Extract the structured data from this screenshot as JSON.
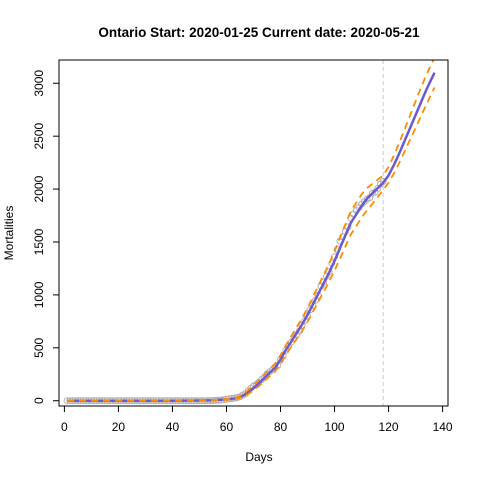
{
  "chart_data": {
    "type": "line",
    "title": "Ontario Start:  2020-01-25   Current date:  2020-05-21",
    "xlabel": "Days",
    "ylabel": "Mortalities",
    "xlim": [
      -2,
      142
    ],
    "ylim": [
      -50,
      3220
    ],
    "x_ticks": [
      0,
      20,
      40,
      60,
      80,
      100,
      120,
      140
    ],
    "y_ticks": [
      0,
      500,
      1000,
      1500,
      2000,
      2500,
      3000
    ],
    "grid": false,
    "legend": "none",
    "current_day_marker": 118,
    "colors": {
      "fit": "#6a5acd",
      "band": "#ff8c00",
      "observed": "#b0b0b0",
      "marker_line": "#d3d3d3",
      "axis": "#000000"
    },
    "series": [
      {
        "role": "observed",
        "style": "points",
        "x": [
          1,
          2,
          3,
          4,
          5,
          6,
          7,
          8,
          9,
          10,
          11,
          12,
          13,
          14,
          15,
          16,
          17,
          18,
          19,
          20,
          21,
          22,
          23,
          24,
          25,
          26,
          27,
          28,
          29,
          30,
          31,
          32,
          33,
          34,
          35,
          36,
          37,
          38,
          39,
          40,
          41,
          42,
          43,
          44,
          45,
          46,
          47,
          48,
          49,
          50,
          51,
          52,
          53,
          54,
          55,
          56,
          57,
          58,
          59,
          60,
          61,
          62,
          63,
          64,
          65,
          66,
          67,
          68,
          69,
          70,
          71,
          72,
          73,
          74,
          75,
          76,
          77,
          78,
          79,
          80,
          81,
          82,
          83,
          84,
          85,
          86,
          87,
          88,
          89,
          90,
          91,
          92,
          93,
          94,
          95,
          96,
          97,
          98,
          99,
          100,
          101,
          102,
          103,
          104,
          105,
          106,
          107,
          108,
          109,
          110,
          111,
          112,
          113,
          114,
          115,
          116,
          117,
          118
        ],
        "y": [
          0,
          0,
          0,
          0,
          0,
          0,
          0,
          0,
          0,
          0,
          0,
          0,
          0,
          0,
          0,
          0,
          0,
          0,
          0,
          0,
          0,
          0,
          0,
          0,
          0,
          0,
          0,
          0,
          0,
          0,
          0,
          0,
          0,
          0,
          0,
          0,
          0,
          0,
          0,
          0,
          0,
          0,
          0,
          0,
          0,
          0,
          0,
          0,
          0,
          0,
          0,
          0,
          1,
          1,
          2,
          3,
          5,
          7,
          9,
          13,
          18,
          21,
          25,
          30,
          37,
          53,
          67,
          94,
          119,
          139,
          153,
          174,
          200,
          222,
          253,
          274,
          291,
          318,
          334,
          385,
          423,
          475,
          514,
          553,
          585,
          622,
          659,
          713,
          758,
          803,
          861,
          903,
          951,
          996,
          1082,
          1121,
          1176,
          1218,
          1300,
          1361,
          1429,
          1509,
          1550,
          1599,
          1643,
          1725,
          1765,
          1798,
          1825,
          1858,
          1881,
          1904,
          1919,
          1962,
          1972,
          2007,
          2048,
          2073
        ]
      },
      {
        "role": "fit",
        "style": "solid",
        "x": [
          1,
          10,
          20,
          30,
          40,
          50,
          55,
          60,
          62,
          64,
          66,
          68,
          70,
          72,
          74,
          76,
          78,
          80,
          82,
          84,
          86,
          88,
          90,
          92,
          94,
          96,
          98,
          100,
          102,
          104,
          106,
          108,
          110,
          112,
          114,
          116,
          118,
          120,
          122,
          124,
          126,
          128,
          130,
          132,
          134,
          137
        ],
        "y": [
          0,
          0,
          0,
          0,
          0,
          2,
          5,
          12,
          18,
          26,
          45,
          80,
          120,
          165,
          215,
          265,
          310,
          390,
          480,
          560,
          640,
          720,
          810,
          910,
          1010,
          1110,
          1210,
          1320,
          1440,
          1560,
          1680,
          1760,
          1840,
          1910,
          1960,
          2010,
          2060,
          2130,
          2230,
          2340,
          2460,
          2580,
          2700,
          2820,
          2940,
          3100
        ]
      },
      {
        "role": "upper",
        "style": "dashed",
        "x": [
          1,
          10,
          20,
          30,
          40,
          50,
          55,
          60,
          62,
          64,
          66,
          68,
          70,
          72,
          74,
          76,
          78,
          80,
          82,
          84,
          86,
          88,
          90,
          92,
          94,
          96,
          98,
          100,
          102,
          104,
          106,
          108,
          110,
          112,
          114,
          116,
          118,
          120,
          122,
          124,
          126,
          128,
          130,
          132,
          134,
          136,
          137
        ],
        "y": [
          0,
          0,
          0,
          0,
          0,
          3,
          7,
          16,
          24,
          34,
          58,
          100,
          145,
          195,
          248,
          300,
          350,
          430,
          525,
          610,
          695,
          780,
          875,
          980,
          1085,
          1190,
          1295,
          1410,
          1540,
          1665,
          1790,
          1870,
          1950,
          2010,
          2050,
          2090,
          2130,
          2210,
          2320,
          2440,
          2570,
          2700,
          2830,
          2960,
          3080,
          3190,
          3240
        ]
      },
      {
        "role": "lower",
        "style": "dashed",
        "x": [
          1,
          10,
          20,
          30,
          40,
          50,
          55,
          60,
          62,
          64,
          66,
          68,
          70,
          72,
          74,
          76,
          78,
          80,
          82,
          84,
          86,
          88,
          90,
          92,
          94,
          96,
          98,
          100,
          102,
          104,
          106,
          108,
          110,
          112,
          114,
          116,
          118,
          120,
          122,
          124,
          126,
          128,
          130,
          132,
          134,
          137
        ],
        "y": [
          0,
          0,
          0,
          0,
          0,
          1,
          3,
          9,
          13,
          19,
          33,
          62,
          97,
          137,
          183,
          232,
          275,
          350,
          435,
          510,
          585,
          660,
          745,
          840,
          935,
          1030,
          1125,
          1230,
          1340,
          1455,
          1570,
          1650,
          1730,
          1800,
          1860,
          1925,
          1995,
          2060,
          2150,
          2250,
          2360,
          2470,
          2580,
          2690,
          2800,
          2960
        ]
      }
    ]
  }
}
